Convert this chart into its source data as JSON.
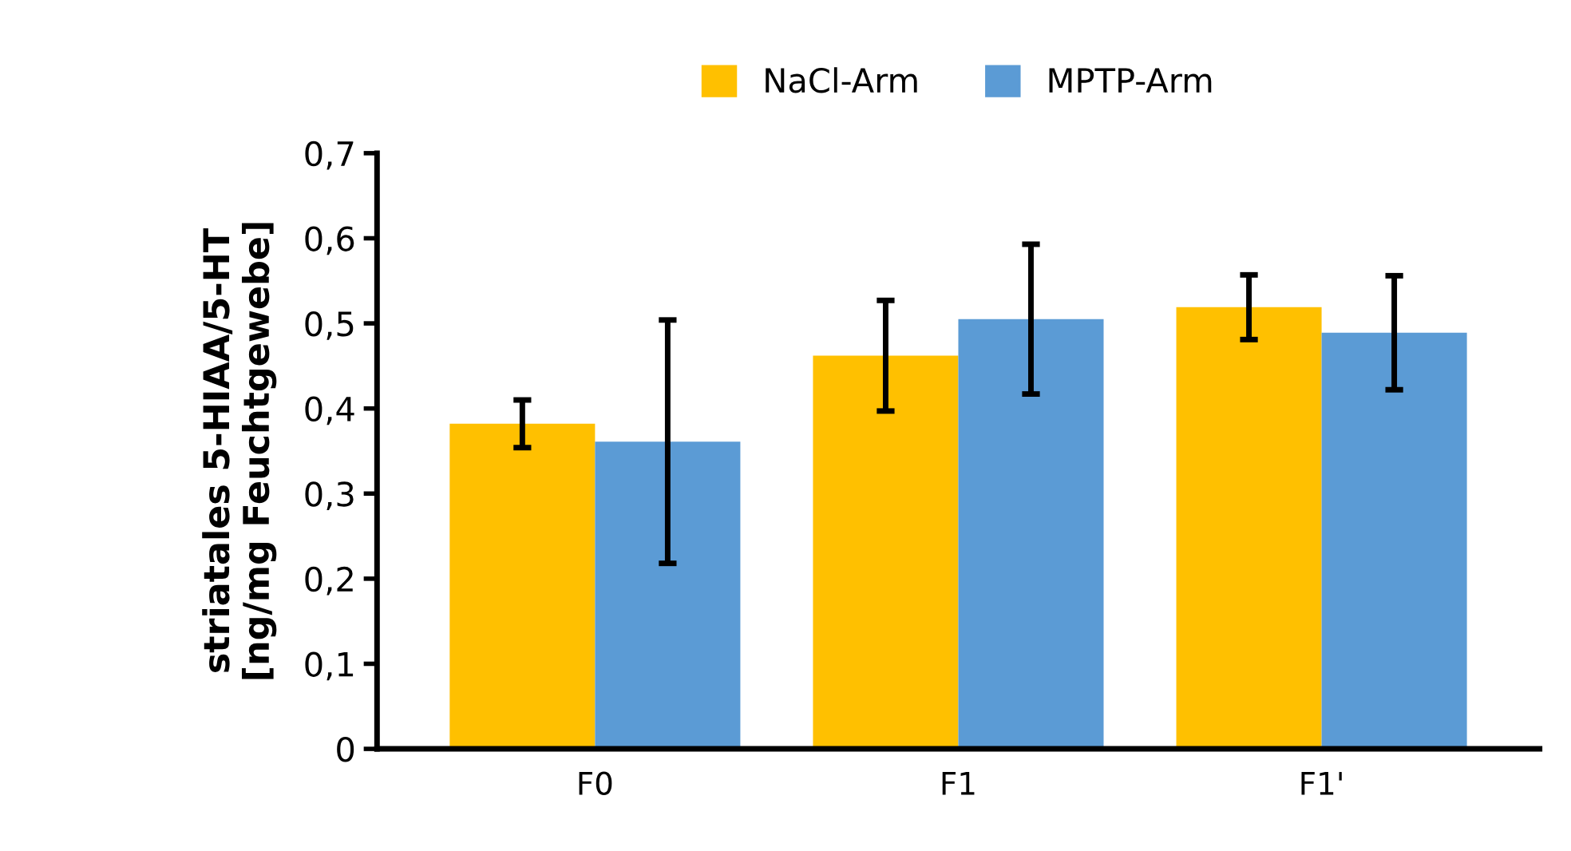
{
  "chart_data": {
    "type": "bar",
    "ylabel": "striatales 5-HIAA/5-HT\n[ng/mg Feuchtgewebe]",
    "categories": [
      "F0",
      "F1",
      "F1'"
    ],
    "series": [
      {
        "name": "NaCl-Arm",
        "color": "#ffc000",
        "values": [
          0.382,
          0.462,
          0.519
        ],
        "errors": [
          0.028,
          0.065,
          0.038
        ]
      },
      {
        "name": "MPTP-Arm",
        "color": "#5b9bd5",
        "values": [
          0.361,
          0.505,
          0.489
        ],
        "errors": [
          0.143,
          0.088,
          0.067
        ]
      }
    ],
    "ylim": [
      0,
      0.7
    ],
    "yticks": [
      0,
      {
        "value": 0.1,
        "label": "0,1"
      },
      {
        "value": 0.2,
        "label": "0,2"
      },
      {
        "value": 0.3,
        "label": "0,3"
      },
      {
        "value": 0.4,
        "label": "0,4"
      },
      {
        "value": 0.5,
        "label": "0,5"
      },
      {
        "value": 0.6,
        "label": "0,6"
      },
      {
        "value": 0.7,
        "label": "0,7"
      }
    ],
    "legend": "top",
    "grid": false
  }
}
